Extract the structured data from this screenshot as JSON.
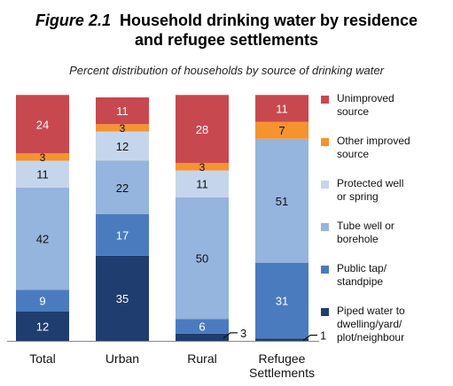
{
  "figure": {
    "number": "Figure 2.1",
    "title_line1": "Household drinking water by residence",
    "title_line2": "and refugee settlements",
    "subtitle": "Percent distribution of households by source of drinking water"
  },
  "colors": {
    "piped": "#1f3d6e",
    "public_tap": "#4b7bbf",
    "tube_well": "#95b4de",
    "protected_well": "#c5d6ec",
    "other_improved": "#f5932f",
    "unimproved": "#c8484f"
  },
  "chart_data": {
    "type": "bar",
    "stacked": true,
    "categories": [
      "Total",
      "Urban",
      "Rural",
      "Refugee Settlements"
    ],
    "ylim": [
      0,
      100
    ],
    "grid": false,
    "legend_position": "right",
    "series": [
      {
        "name": "Piped water to dwelling/yard/ plot/neighbour",
        "color_key": "piped",
        "values": [
          12,
          35,
          3,
          1
        ]
      },
      {
        "name": "Public tap/ standpipe",
        "color_key": "public_tap",
        "values": [
          9,
          17,
          6,
          31
        ]
      },
      {
        "name": "Tube well or borehole",
        "color_key": "tube_well",
        "values": [
          42,
          22,
          50,
          51
        ]
      },
      {
        "name": "Protected well or spring",
        "color_key": "protected_well",
        "values": [
          11,
          12,
          11,
          0
        ]
      },
      {
        "name": "Other improved source",
        "color_key": "other_improved",
        "values": [
          3,
          3,
          3,
          7
        ]
      },
      {
        "name": "Unimproved source",
        "color_key": "unimproved",
        "values": [
          24,
          11,
          28,
          11
        ]
      }
    ],
    "legend_lines": {
      "unimproved": [
        "Unimproved",
        "source"
      ],
      "other_improved": [
        "Other improved",
        "source"
      ],
      "protected_well": [
        "Protected well",
        "or spring"
      ],
      "tube_well": [
        "Tube well or",
        "borehole"
      ],
      "public_tap": [
        "Public tap/",
        "standpipe"
      ],
      "piped": [
        "Piped water to",
        "dwelling/yard/",
        "plot/neighbour"
      ]
    },
    "category_lines": [
      [
        "Total"
      ],
      [
        "Urban"
      ],
      [
        "Rural"
      ],
      [
        "Refugee",
        "Settlements"
      ]
    ],
    "callouts": [
      "3",
      "1"
    ]
  }
}
